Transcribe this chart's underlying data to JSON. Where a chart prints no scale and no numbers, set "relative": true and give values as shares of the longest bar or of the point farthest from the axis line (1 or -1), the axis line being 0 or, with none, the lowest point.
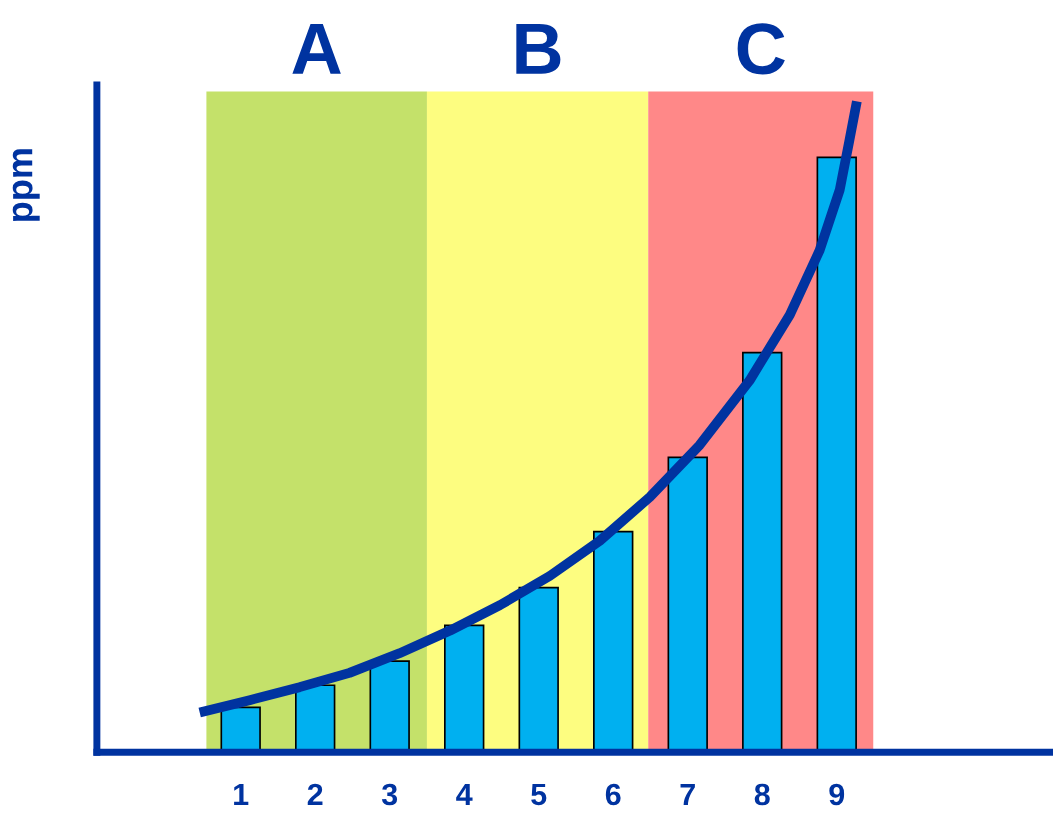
{
  "chart_data": {
    "type": "bar",
    "relative": true,
    "ylabel": "ppm",
    "x": [
      1,
      2,
      3,
      4,
      5,
      6,
      7,
      8,
      9
    ],
    "xlim": [
      -0.93,
      11.86
    ],
    "xticks": [
      1,
      2,
      3,
      4,
      5,
      6,
      7,
      8,
      9
    ],
    "tick_labels": "x",
    "grid": false,
    "series": [
      {
        "color": "#00b0f0",
        "values": [
          0.069,
          0.103,
          0.14,
          0.195,
          0.253,
          0.339,
          0.453,
          0.614,
          0.914
        ]
      },
      {
        "type": "line",
        "color": "#0033a0",
        "x": [
          0.45,
          1.12,
          1.79,
          2.46,
          3.13,
          3.81,
          4.48,
          5.15,
          5.82,
          6.49,
          7.16,
          7.83,
          8.37,
          8.77,
          9.04,
          9.17,
          9.27
        ],
        "values": [
          0.061,
          0.08,
          0.1,
          0.122,
          0.152,
          0.187,
          0.226,
          0.271,
          0.325,
          0.392,
          0.472,
          0.571,
          0.672,
          0.771,
          0.864,
          0.94,
          1.0
        ]
      }
    ],
    "bands": [
      {
        "axis": "x",
        "from": 0.54,
        "to": 3.5,
        "label": "A",
        "color": "#c4e16a"
      },
      {
        "axis": "x",
        "from": 3.5,
        "to": 6.47,
        "label": "B",
        "color": "#fdfd80"
      },
      {
        "axis": "x",
        "from": 6.47,
        "to": 9.49,
        "label": "C",
        "color": "#ff8888"
      }
    ]
  }
}
